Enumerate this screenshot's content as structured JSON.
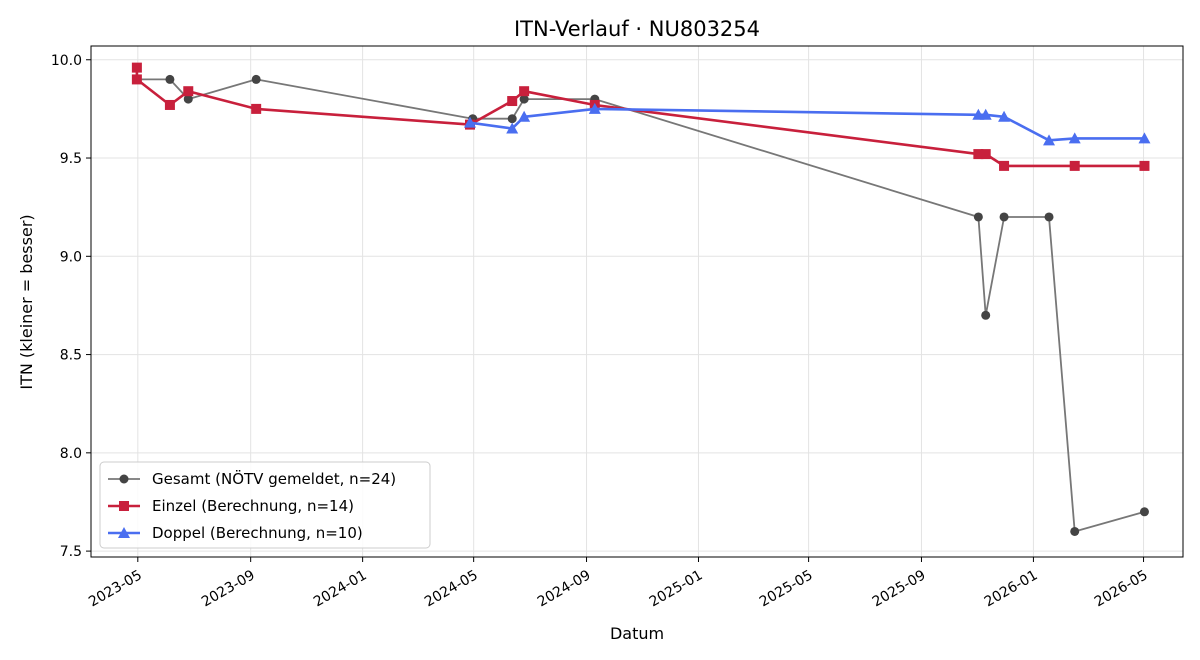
{
  "chart_data": {
    "type": "line",
    "title": "ITN-Verlauf · NU803254",
    "xlabel": "Datum",
    "ylabel": "ITN  (kleiner = besser)",
    "ylim": [
      7.47,
      10.07
    ],
    "xlim": [
      "2023-03-11",
      "2026-06-13"
    ],
    "grid": true,
    "legend_position": "lower-left",
    "x_ticks": [
      "2023-05",
      "2023-09",
      "2024-01",
      "2024-05",
      "2024-09",
      "2025-01",
      "2025-05",
      "2025-09",
      "2026-01",
      "2026-05"
    ],
    "y_ticks": [
      "7.5",
      "8.0",
      "8.5",
      "9.0",
      "9.5",
      "10.0"
    ],
    "series": [
      {
        "name": "Gesamt (NÖTV gemeldet, n=24)",
        "color": "#777777",
        "marker_color": "#444444",
        "marker": "circle",
        "points": [
          [
            "2023-04-30",
            9.9
          ],
          [
            "2023-06-05",
            9.9
          ],
          [
            "2023-06-25",
            9.8
          ],
          [
            "2023-09-07",
            9.9
          ],
          [
            "2024-04-30",
            9.7
          ],
          [
            "2024-06-12",
            9.7
          ],
          [
            "2024-06-25",
            9.8
          ],
          [
            "2024-09-10",
            9.8
          ],
          [
            "2025-11-02",
            9.2
          ],
          [
            "2025-11-10",
            8.7
          ],
          [
            "2025-11-30",
            9.2
          ],
          [
            "2026-01-18",
            9.2
          ],
          [
            "2026-02-15",
            7.6
          ],
          [
            "2026-05-02",
            7.7
          ]
        ]
      },
      {
        "name": "Einzel (Berechnung, n=14)",
        "color": "#c8203c",
        "marker": "square",
        "points": [
          [
            "2023-04-30",
            9.96
          ],
          [
            "2023-04-30",
            9.9
          ],
          [
            "2023-06-05",
            9.77
          ],
          [
            "2023-06-25",
            9.84
          ],
          [
            "2023-09-07",
            9.75
          ],
          [
            "2024-04-27",
            9.67
          ],
          [
            "2024-06-12",
            9.79
          ],
          [
            "2024-06-25",
            9.84
          ],
          [
            "2024-09-10",
            9.77
          ],
          [
            "2025-11-02",
            9.52
          ],
          [
            "2025-11-10",
            9.52
          ],
          [
            "2025-11-30",
            9.46
          ],
          [
            "2026-02-15",
            9.46
          ],
          [
            "2026-05-02",
            9.46
          ]
        ]
      },
      {
        "name": "Doppel (Berechnung, n=10)",
        "color": "#4a6ef0",
        "marker": "triangle",
        "points": [
          [
            "2024-04-27",
            9.68
          ],
          [
            "2024-06-12",
            9.65
          ],
          [
            "2024-06-25",
            9.71
          ],
          [
            "2024-09-10",
            9.75
          ],
          [
            "2025-11-02",
            9.72
          ],
          [
            "2025-11-10",
            9.72
          ],
          [
            "2025-11-30",
            9.71
          ],
          [
            "2026-01-18",
            9.59
          ],
          [
            "2026-02-15",
            9.6
          ],
          [
            "2026-05-02",
            9.6
          ]
        ]
      }
    ]
  }
}
